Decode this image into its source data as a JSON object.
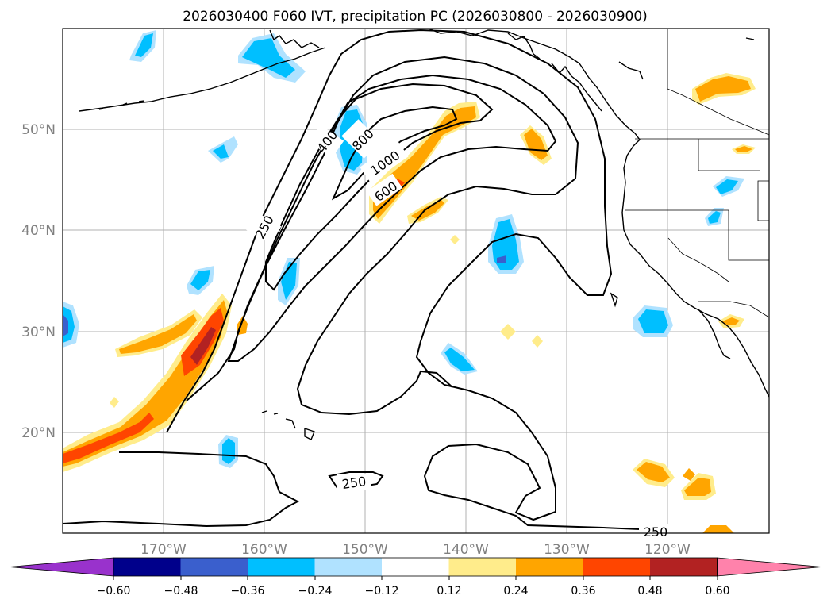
{
  "title": "2026030400 F060 IVT, precipitation PC (2026030800 - 2026030900)",
  "map": {
    "lon_ticks": [
      "170°W",
      "160°W",
      "150°W",
      "140°W",
      "130°W",
      "120°W"
    ],
    "lat_ticks": [
      "50°N",
      "40°N",
      "30°N",
      "20°N"
    ],
    "contour_labels": [
      "250",
      "400",
      "800",
      "1000",
      "600",
      "250",
      "250"
    ]
  },
  "colorbar": {
    "tick_labels": [
      "−0.60",
      "−0.48",
      "−0.36",
      "−0.24",
      "−0.12",
      "0.12",
      "0.24",
      "0.36",
      "0.48",
      "0.60"
    ],
    "colors": [
      "#9932cc",
      "#00008b",
      "#3a5fcd",
      "#00bfff",
      "#b0e2ff",
      "#ffffff",
      "#ffec8b",
      "#ffa500",
      "#ff4500",
      "#b22222",
      "#ff82ab"
    ]
  },
  "colors": {
    "coast": "#000000",
    "contour": "#000000",
    "grid": "#b0b0b0"
  }
}
